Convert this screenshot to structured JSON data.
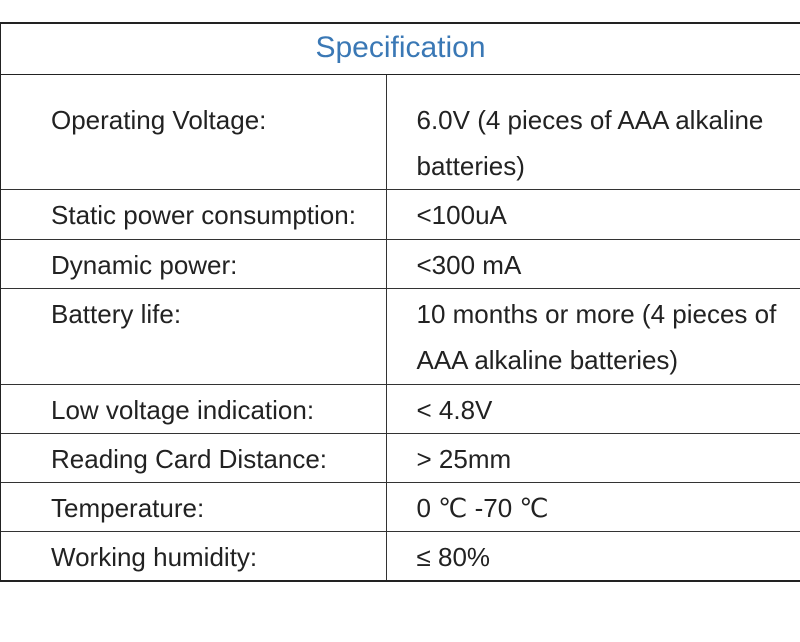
{
  "title": "Specification",
  "table": {
    "rows": [
      [
        "Operating Voltage:",
        "6.0V (4 pieces of AAA alkaline batteries)"
      ],
      [
        "Static power consumption:",
        "<100uA"
      ],
      [
        "Dynamic power:",
        "<300 mA"
      ],
      [
        "Battery life:",
        "10 months or more (4 pieces of AAA alkaline batteries)"
      ],
      [
        "Low voltage indication:",
        "< 4.8V"
      ],
      [
        "Reading Card Distance:",
        "> 25mm"
      ],
      [
        "Temperature:",
        "0 ℃ -70 ℃"
      ],
      [
        "Working humidity:",
        "≤ 80%"
      ]
    ]
  }
}
